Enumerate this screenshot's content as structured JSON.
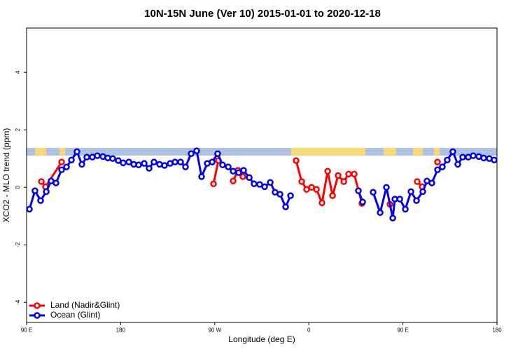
{
  "chart_data": {
    "type": "line",
    "title": "10N-15N June (Ver 10)   2015-01-01 to 2020-12-18",
    "x_label": "Longitude (deg E)",
    "y_label": "XCO2 - MLO trend (ppm)",
    "xlim": [
      90,
      540
    ],
    "ylim": [
      -4.7,
      5.54
    ],
    "xticks": [
      {
        "value": 90,
        "label": "90 E"
      },
      180,
      {
        "value": 270,
        "label": "90 W"
      },
      {
        "value": 360,
        "label": "0"
      },
      {
        "value": 450,
        "label": "90 E"
      },
      {
        "value": 540,
        "label": "180"
      }
    ],
    "yticks": [
      -4,
      -2,
      0,
      2,
      4
    ],
    "legend": "bottomleft",
    "series": [
      {
        "name": "Land (Nadir&Glint)",
        "color": "#ff0000",
        "x": [
          104.1,
          108.1,
          123.5,
          null,
          268.8,
          273.5,
          null,
          287.6,
          292.2,
          296.9,
          null,
          347.8,
          353.2,
          357.9,
          362.6,
          367.3,
          372.6,
          378.0,
          382.7,
          388.0,
          393.4,
          398.0,
          403.4,
          410.8,
          null,
          437.6,
          null,
          463.7,
          468.4,
          null,
          483.1
        ],
        "values": [
          0.2,
          0.02,
          0.88,
          null,
          0.12,
          0.93,
          null,
          0.22,
          0.59,
          0.37,
          null,
          0.93,
          0.2,
          -0.07,
          0,
          -0.07,
          -0.54,
          0.56,
          -0.29,
          0.41,
          0.2,
          0.46,
          0.46,
          -0.56,
          null,
          -0.59,
          null,
          0.2,
          0.02,
          null,
          0.88
        ]
      },
      {
        "name": "Ocean (Glint)",
        "color": "#0000ee",
        "x": [
          92.7,
          98.0,
          103.4,
          108.8,
          113.4,
          118.1,
          123.5,
          128.2,
          132.9,
          138.2,
          142.9,
          147.6,
          152.9,
          157.6,
          163.0,
          167.7,
          172.4,
          177.7,
          182.4,
          187.8,
          192.5,
          197.2,
          202.5,
          207.2,
          211.9,
          217.2,
          221.9,
          227.3,
          232.0,
          237.3,
          242.0,
          247.4,
          252.7,
          257.4,
          262.8,
          267.5,
          272.8,
          277.5,
          282.9,
          287.6,
          292.9,
          297.6,
          303.0,
          307.6,
          313.0,
          317.7,
          323.1,
          327.7,
          332.4,
          337.8,
          342.5,
          null,
          407.4,
          411.5,
          null,
          421.5,
          428.2,
          434.2,
          440.3,
          442.3,
          447.0,
          452.3,
          457.7,
          463.0,
          469.0,
          473.0,
          477.7,
          483.1,
          487.7,
          492.4,
          497.8,
          502.5,
          507.2,
          512.5,
          517.2,
          522.6,
          527.3,
          532.6,
          537.3
        ],
        "values": [
          -0.76,
          -0.12,
          -0.46,
          -0.15,
          0.22,
          0.15,
          0.61,
          0.71,
          0.95,
          1.24,
          0.8,
          1.05,
          1.05,
          1.1,
          1.07,
          1.02,
          1.0,
          0.93,
          0.85,
          0.88,
          0.8,
          0.78,
          0.83,
          0.66,
          0.88,
          0.8,
          0.76,
          0.83,
          0.88,
          0.88,
          0.71,
          1.17,
          1.27,
          0.37,
          0.83,
          0.88,
          1.17,
          0.78,
          0.71,
          0.56,
          0.51,
          0.59,
          0.34,
          0.12,
          0.1,
          0.02,
          0.17,
          -0.17,
          -0.24,
          -0.68,
          -0.29,
          null,
          -0.12,
          -0.51,
          null,
          -0.17,
          -0.88,
          0,
          -1.07,
          -0.41,
          -0.41,
          -0.76,
          -0.15,
          -0.46,
          -0.15,
          0.22,
          0.15,
          0.61,
          0.71,
          0.95,
          1.24,
          0.8,
          1.05,
          1.05,
          1.1,
          1.07,
          1.02,
          1.0,
          0.95
        ]
      }
    ]
  }
}
